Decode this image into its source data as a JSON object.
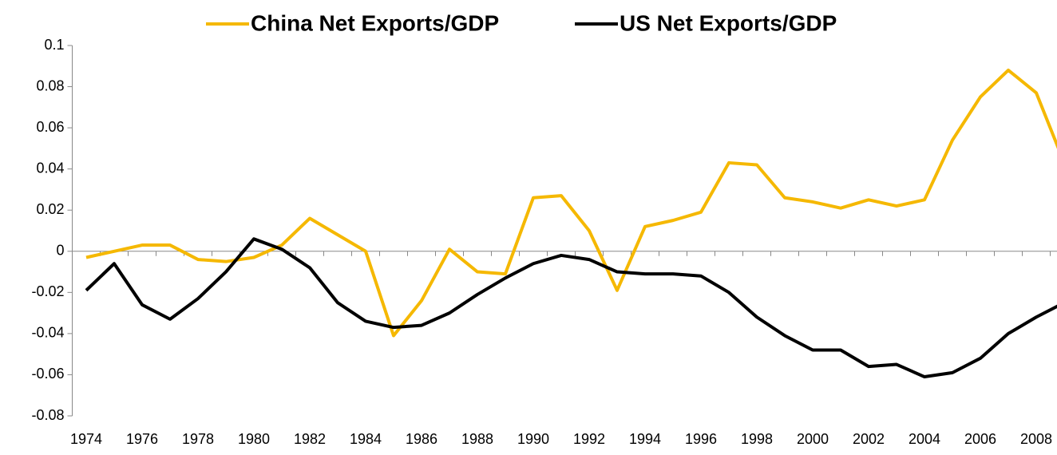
{
  "chart_data": {
    "type": "line",
    "categories": [
      "1974",
      null,
      "1976",
      null,
      "1978",
      null,
      "1980",
      null,
      "1982",
      null,
      "1984",
      null,
      "1986",
      null,
      "1988",
      null,
      "1990",
      null,
      "1992",
      null,
      "1994",
      null,
      "1996",
      null,
      "1998",
      null,
      "2000",
      null,
      "2002",
      null,
      "2004",
      null,
      "2006",
      null,
      "2008",
      null
    ],
    "series": [
      {
        "name": "China Net Exports/GDP",
        "color": "#f5b800",
        "values": [
          -0.003,
          0.0,
          0.003,
          0.003,
          -0.004,
          -0.005,
          -0.003,
          0.003,
          0.016,
          0.008,
          0.0,
          -0.041,
          -0.024,
          0.001,
          -0.01,
          -0.011,
          0.026,
          0.027,
          0.01,
          -0.019,
          0.012,
          0.015,
          0.019,
          0.043,
          0.042,
          0.026,
          0.024,
          0.021,
          0.025,
          0.022,
          0.025,
          0.054,
          0.075,
          0.088,
          0.077,
          0.043
        ]
      },
      {
        "name": "US Net Exports/GDP",
        "color": "#000000",
        "values": [
          -0.019,
          -0.006,
          -0.026,
          -0.033,
          -0.023,
          -0.01,
          0.006,
          0.001,
          -0.008,
          -0.025,
          -0.034,
          -0.037,
          -0.036,
          -0.03,
          -0.021,
          -0.013,
          -0.006,
          -0.002,
          -0.004,
          -0.01,
          -0.011,
          -0.011,
          -0.012,
          -0.02,
          -0.032,
          -0.041,
          -0.048,
          -0.048,
          -0.056,
          -0.055,
          -0.061,
          -0.059,
          -0.052,
          -0.04,
          -0.032,
          -0.025
        ]
      }
    ],
    "ylim": [
      -0.08,
      0.1
    ],
    "yticks": [
      -0.08,
      -0.06,
      -0.04,
      -0.02,
      0,
      0.02,
      0.04,
      0.06,
      0.08,
      0.1
    ],
    "legend": "top",
    "grid": false
  }
}
